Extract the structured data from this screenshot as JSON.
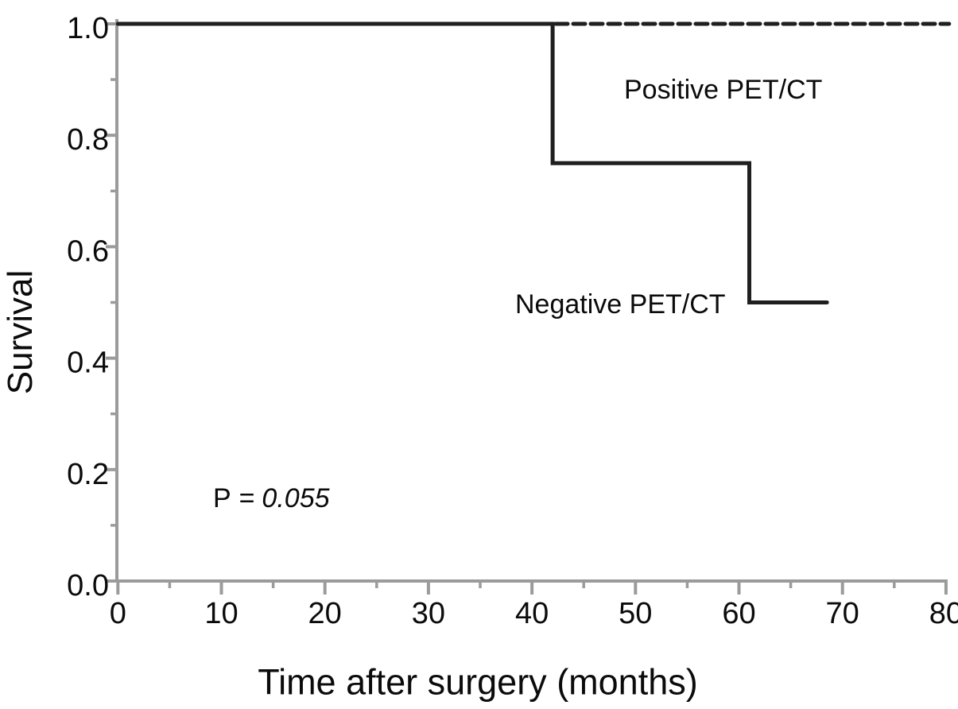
{
  "figure": {
    "background": "#ffffff"
  },
  "labels": {
    "ylabel": "Survival",
    "xlabel": "Time after surgery (months)",
    "positive_group": "Positive PET/CT",
    "negative_group": "Negative PET/CT",
    "p_prefix": "P",
    "p_rest": " = 0.055"
  },
  "chart_data": {
    "type": "line",
    "subtype": "kaplan-meier-step",
    "title": "",
    "xlabel": "Time after surgery (months)",
    "ylabel": "Survival",
    "xlim": [
      0,
      80
    ],
    "ylim": [
      0.0,
      1.0
    ],
    "grid": false,
    "legend_position": "inline-annotations",
    "x_major_ticks": [
      "0",
      "10",
      "20",
      "30",
      "40",
      "50",
      "60",
      "70",
      "80"
    ],
    "x_major_tick_values": [
      0,
      10,
      20,
      30,
      40,
      50,
      60,
      70,
      80
    ],
    "x_minor_tick_values": [
      5,
      15,
      25,
      35,
      45,
      55,
      65,
      75
    ],
    "y_major_ticks": [
      "1.0",
      "0.8",
      "0.6",
      "0.4",
      "0.2",
      "0.0"
    ],
    "y_major_tick_values": [
      1.0,
      0.8,
      0.6,
      0.4,
      0.2,
      0.0
    ],
    "y_minor_tick_values": [
      0.9,
      0.7,
      0.5,
      0.3,
      0.1
    ],
    "series": [
      {
        "name": "Positive PET/CT",
        "line_style": "dashed",
        "color": "#1f1f1f",
        "points": [
          [
            42.3,
            1.0
          ],
          [
            80.3,
            1.0
          ]
        ],
        "note": "survival remains 1.0 over entire follow-up"
      },
      {
        "name": "Negative PET/CT",
        "line_style": "solid",
        "color": "#1f1f1f",
        "points": [
          [
            0,
            1.0
          ],
          [
            42,
            1.0
          ],
          [
            42,
            0.75
          ],
          [
            61,
            0.75
          ],
          [
            61,
            0.5
          ],
          [
            68.5,
            0.5
          ]
        ],
        "note": "steps: drops 1.0 to 0.75 at 42 months, 0.75 to 0.50 at 61 months, ends ~68.5 months"
      }
    ],
    "annotations": [
      {
        "text": "Positive PET/CT",
        "near": "dashed line, upper right"
      },
      {
        "text": "Negative PET/CT",
        "near": "left of final solid plateau at 0.50"
      },
      {
        "text": "P = 0.055",
        "near": "lower left region"
      }
    ],
    "axis_color": "#9b9b9b",
    "curve_color": "#1f1f1f",
    "text_color": "#0b0b0b"
  }
}
